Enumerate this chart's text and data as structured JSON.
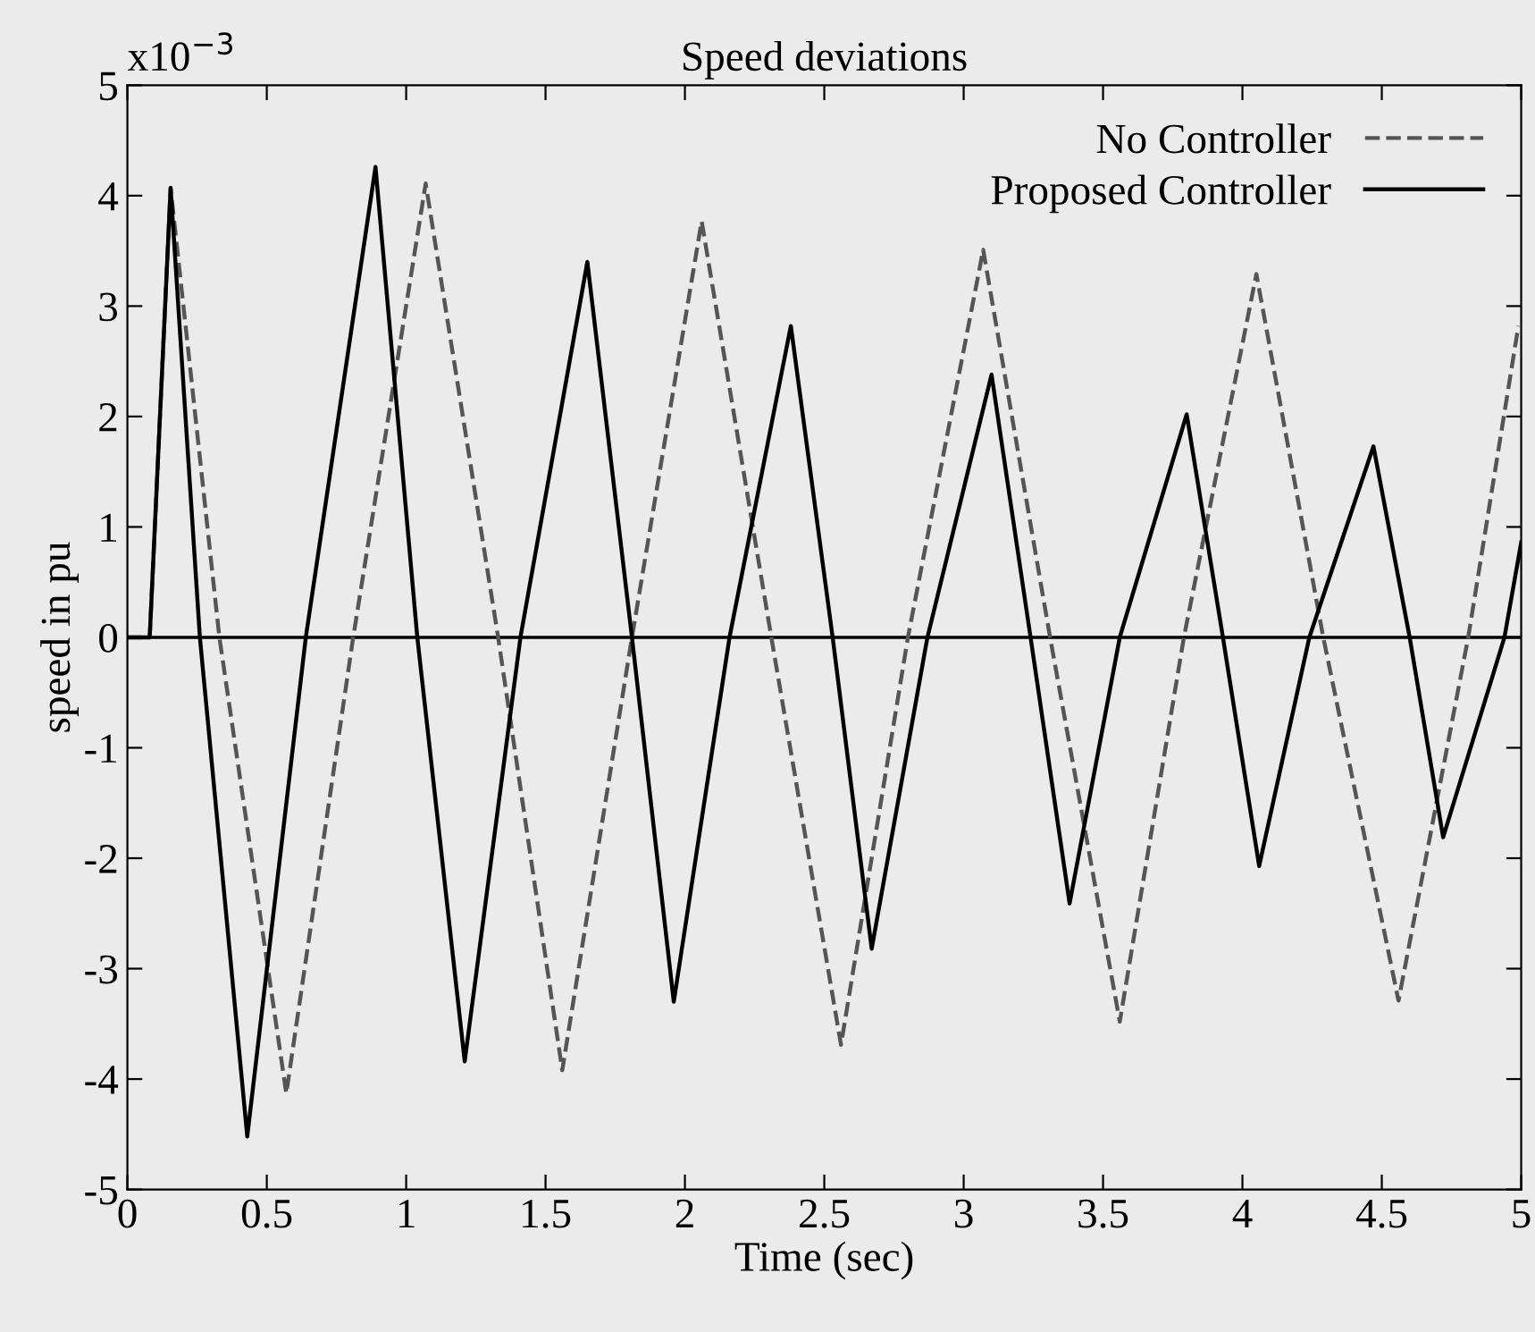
{
  "chart_data": {
    "type": "line",
    "title": "Speed deviations",
    "xlabel": "Time (sec)",
    "ylabel": "speed in pu",
    "annotations": [
      "x10$^{−3}$"
    ],
    "xlim": [
      0,
      5
    ],
    "xticks": [
      0,
      0.5,
      1,
      1.5,
      2,
      2.5,
      3,
      3.5,
      4,
      4.5,
      5
    ],
    "ylim": [
      -5,
      5
    ],
    "yticks": [
      -5,
      -4,
      -3,
      -2,
      -1,
      0,
      1,
      2,
      3,
      4,
      5
    ],
    "grid": false,
    "legend": "top right",
    "marker": "none",
    "ref_lines": [
      {
        "axis": "y",
        "value": 0,
        "color": "#000000",
        "line_style": "solid"
      }
    ],
    "series": [
      {
        "name": "No Controller",
        "color": "#555555",
        "line_style": "dashed",
        "x": [
          0,
          0.08,
          0.155,
          0.33,
          0.57,
          0.81,
          1.07,
          1.33,
          1.56,
          1.81,
          2.06,
          2.31,
          2.56,
          2.8,
          3.07,
          3.31,
          3.56,
          3.79,
          4.05,
          4.29,
          4.56,
          4.81,
          4.99
        ],
        "values": [
          0,
          0,
          4.07,
          0,
          -4.13,
          0,
          4.11,
          0,
          -3.92,
          0,
          3.77,
          0,
          -3.69,
          0,
          3.51,
          0,
          -3.48,
          0,
          3.29,
          0,
          -3.29,
          0,
          2.82
        ]
      },
      {
        "name": "Proposed Controller",
        "color": "#000000",
        "line_style": "solid",
        "x": [
          0,
          0.08,
          0.155,
          0.26,
          0.43,
          0.64,
          0.89,
          1.04,
          1.21,
          1.41,
          1.65,
          1.81,
          1.96,
          2.16,
          2.38,
          2.53,
          2.67,
          2.87,
          3.1,
          3.24,
          3.38,
          3.56,
          3.8,
          3.93,
          4.06,
          4.24,
          4.47,
          4.6,
          4.72,
          4.94,
          5.0
        ],
        "values": [
          0,
          0,
          4.07,
          0,
          -4.52,
          0,
          4.26,
          0,
          -3.84,
          0,
          3.4,
          0,
          -3.3,
          0,
          2.82,
          0,
          -2.82,
          0,
          2.38,
          0,
          -2.41,
          0,
          2.02,
          0,
          -2.07,
          0,
          1.73,
          0,
          -1.81,
          0,
          0.86
        ]
      }
    ]
  }
}
